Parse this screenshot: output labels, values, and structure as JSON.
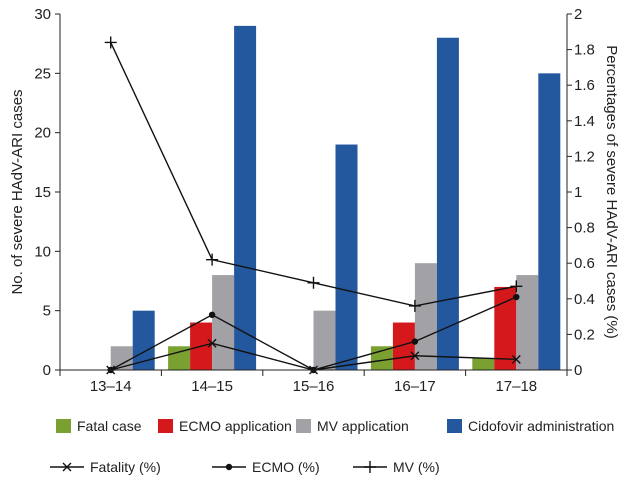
{
  "chart_data": {
    "type": "bar",
    "categories": [
      "13–14",
      "14–15",
      "15–16",
      "16–17",
      "17–18"
    ],
    "series": [
      {
        "name": "Fatal case",
        "kind": "bar",
        "axis": "left",
        "color": "#7aa032",
        "values": [
          0,
          2,
          0,
          2,
          1
        ]
      },
      {
        "name": "ECMO application",
        "kind": "bar",
        "axis": "left",
        "color": "#d4181b",
        "values": [
          0,
          4,
          0,
          4,
          7
        ]
      },
      {
        "name": "MV application",
        "kind": "bar",
        "axis": "left",
        "color": "#a2a2a6",
        "values": [
          2,
          8,
          5,
          9,
          8
        ]
      },
      {
        "name": "Cidofovir administration",
        "kind": "bar",
        "axis": "left",
        "color": "#24589e",
        "values": [
          5,
          29,
          19,
          28,
          25
        ]
      },
      {
        "name": "Fatality (%)",
        "kind": "line",
        "axis": "right",
        "marker": "x",
        "values": [
          0,
          0.15,
          0,
          0.08,
          0.06
        ]
      },
      {
        "name": "ECMO (%)",
        "kind": "line",
        "axis": "right",
        "marker": "dot",
        "values": [
          0,
          0.31,
          0,
          0.16,
          0.41
        ]
      },
      {
        "name": "MV (%)",
        "kind": "line",
        "axis": "right",
        "marker": "plus",
        "values": [
          1.84,
          0.62,
          0.49,
          0.36,
          0.47
        ]
      }
    ],
    "ylabel": "No. of severe  HAdV-ARI cases",
    "y2label": "Percentages of severe HAdV-ARI cases (%)",
    "ylim": [
      0,
      30
    ],
    "y2lim": [
      0,
      2
    ],
    "yticks": [
      "0",
      "5",
      "10",
      "15",
      "20",
      "25",
      "30"
    ],
    "y2ticks": [
      "0",
      "0.2",
      "0.4",
      "0.6",
      "0.8",
      "1",
      "1.2",
      "1.4",
      "1.6",
      "1.8",
      "2"
    ],
    "grid": false,
    "legend_position": "bottom"
  }
}
